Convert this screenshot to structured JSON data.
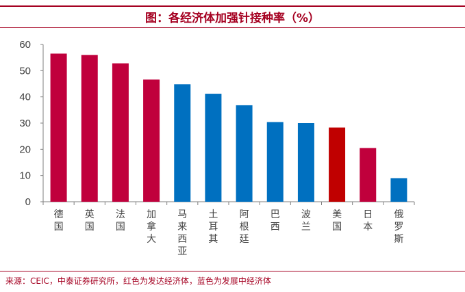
{
  "title": "图：各经济体加强针接种率（%）",
  "source": "来源：CEIC，中泰证券研究所，红色为发达经济体，蓝色为发展中经济体",
  "colors": {
    "developed": "#c0003c",
    "developing": "#0070c0",
    "accent": "#a50021"
  },
  "chart_data": {
    "type": "bar",
    "title": "图：各经济体加强针接种率（%）",
    "categories": [
      "德国",
      "英国",
      "法国",
      "加拿大",
      "马来西亚",
      "土耳其",
      "阿根廷",
      "巴西",
      "波兰",
      "美国",
      "日本",
      "俄罗斯"
    ],
    "values": [
      56.5,
      56.0,
      52.8,
      46.6,
      44.8,
      41.2,
      36.8,
      30.4,
      30.0,
      28.3,
      20.5,
      9.0
    ],
    "groups": [
      "developed",
      "developed",
      "developed",
      "developed",
      "developing",
      "developing",
      "developing",
      "developing",
      "developing",
      "developed",
      "developed",
      "developing"
    ],
    "bar_colors": [
      "#c0003c",
      "#c0003c",
      "#c0003c",
      "#c0003c",
      "#0070c0",
      "#0070c0",
      "#0070c0",
      "#0070c0",
      "#0070c0",
      "#c00000",
      "#c0003c",
      "#0070c0"
    ],
    "ylim": [
      0,
      60
    ],
    "yticks": [
      0,
      10,
      20,
      30,
      40,
      50,
      60
    ],
    "xlabel": "",
    "ylabel": "",
    "grid": false
  }
}
